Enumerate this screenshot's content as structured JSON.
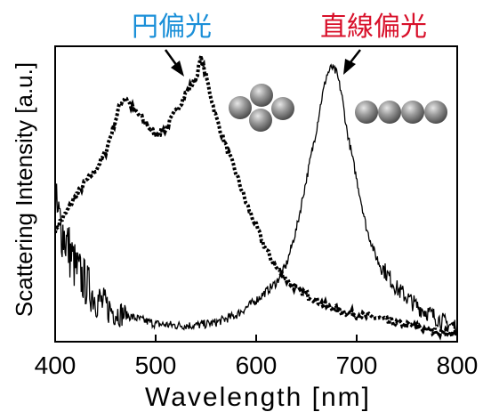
{
  "chart_data": {
    "type": "line",
    "xlabel": "Wavelength [nm]",
    "ylabel": "Scattering Intensity [a.u.]",
    "xlim": [
      400,
      800
    ],
    "ylim": [
      0,
      1
    ],
    "x_ticks": [
      400,
      500,
      600,
      700,
      800
    ],
    "y_ticks": [],
    "grid": false,
    "series": [
      {
        "name": "円偏光",
        "style": "dotted",
        "color": "#000000",
        "x": [
          400,
          410,
          420,
          430,
          440,
          450,
          460,
          465,
          470,
          475,
          480,
          490,
          500,
          510,
          520,
          530,
          540,
          545,
          550,
          560,
          570,
          580,
          590,
          600,
          610,
          620,
          630,
          640,
          650,
          660,
          670,
          680,
          690,
          700,
          710,
          720,
          730,
          740,
          750,
          760,
          770,
          780,
          790,
          800
        ],
        "y": [
          0.38,
          0.43,
          0.49,
          0.54,
          0.58,
          0.64,
          0.75,
          0.81,
          0.83,
          0.8,
          0.78,
          0.74,
          0.7,
          0.72,
          0.78,
          0.84,
          0.89,
          0.96,
          0.9,
          0.76,
          0.66,
          0.57,
          0.47,
          0.39,
          0.31,
          0.25,
          0.21,
          0.18,
          0.16,
          0.14,
          0.12,
          0.11,
          0.1,
          0.09,
          0.085,
          0.08,
          0.07,
          0.06,
          0.055,
          0.05,
          0.04,
          0.035,
          0.03,
          0.03
        ]
      },
      {
        "name": "直線偏光",
        "style": "solid",
        "color": "#000000",
        "x": [
          400,
          410,
          420,
          430,
          440,
          450,
          460,
          480,
          500,
          520,
          540,
          560,
          580,
          600,
          610,
          620,
          630,
          640,
          650,
          660,
          665,
          670,
          675,
          680,
          685,
          690,
          700,
          710,
          720,
          730,
          740,
          750,
          760,
          770,
          780,
          790,
          800
        ],
        "y": [
          0.45,
          0.35,
          0.25,
          0.2,
          0.15,
          0.12,
          0.1,
          0.08,
          0.06,
          0.055,
          0.055,
          0.065,
          0.09,
          0.14,
          0.17,
          0.2,
          0.26,
          0.38,
          0.55,
          0.72,
          0.82,
          0.9,
          0.93,
          0.91,
          0.84,
          0.72,
          0.55,
          0.38,
          0.28,
          0.23,
          0.18,
          0.15,
          0.12,
          0.1,
          0.08,
          0.06,
          0.05
        ]
      }
    ],
    "annotations": [
      {
        "text": "円偏光",
        "color": "#1a8fd8",
        "points_to": {
          "x": 528,
          "y": 0.9
        }
      },
      {
        "text": "直線偏光",
        "color": "#d8102a",
        "points_to": {
          "x": 682,
          "y": 0.92
        }
      }
    ],
    "insets": [
      {
        "name": "square-nanoparticle-arrangement",
        "spheres": 4,
        "color": "#888888"
      },
      {
        "name": "linear-nanoparticle-chain",
        "spheres": 4,
        "color": "#888888"
      }
    ]
  }
}
